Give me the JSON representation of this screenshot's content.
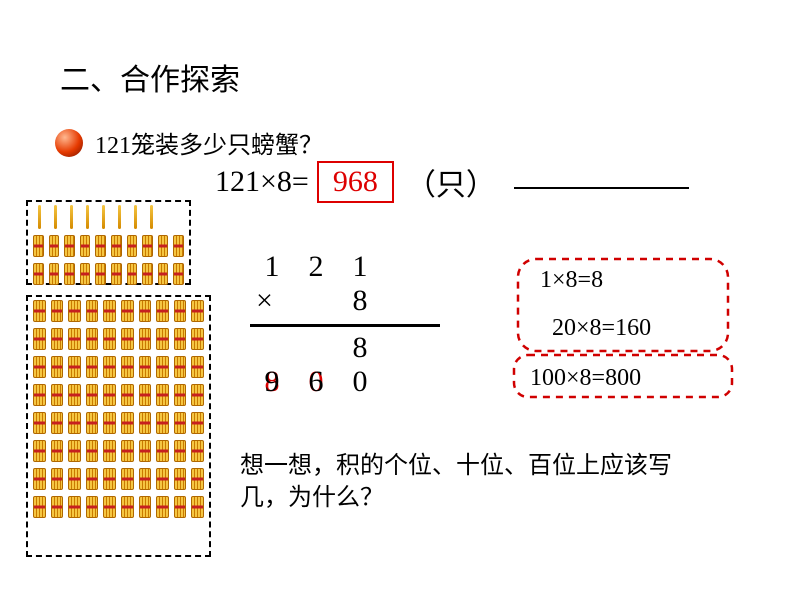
{
  "title": "二、合作探索",
  "question": "121笼装多少只螃蟹？",
  "equation": {
    "lhs": "121×8=",
    "answer": "968",
    "unit": "（只）",
    "answer_color": "#d00000",
    "box_border": "#d00000"
  },
  "vertical_mult": {
    "row1": [
      "1",
      "2",
      "1"
    ],
    "row2_sign": "×",
    "row2": [
      "",
      "",
      "8"
    ],
    "result_row1": [
      "",
      "",
      "8"
    ],
    "result_row2_back": [
      "8",
      "0",
      "0"
    ],
    "result_row2_front": [
      "9",
      "6",
      ""
    ],
    "line_color": "#000000",
    "overlap_back_color": "#d00000"
  },
  "callouts": {
    "line1": "1×8=8",
    "line2": "20×8=160",
    "line3": "100×8=800",
    "stroke_color": "#d00000",
    "dash": "7,6",
    "stroke_width": 2
  },
  "think_prompt": "想一想，积的个位、十位、百位上应该写几，为什么？",
  "illustration": {
    "singles_count": 8,
    "box1_bundle_rows": 2,
    "box1_bundles_per_row": 10,
    "box2_bundle_rows": 8,
    "box2_bundles_per_row": 10,
    "bundle_color": "#f5c642",
    "bundle_band": "#c62020"
  },
  "colors": {
    "background": "#ffffff",
    "text": "#000000",
    "accent_red": "#d00000",
    "sphere_gradient": [
      "#ffb890",
      "#e63a00",
      "#8b1a00"
    ]
  },
  "fonts": {
    "chinese": "SimSun",
    "numbers": "Times New Roman",
    "title_size": 30,
    "body_size": 24
  }
}
